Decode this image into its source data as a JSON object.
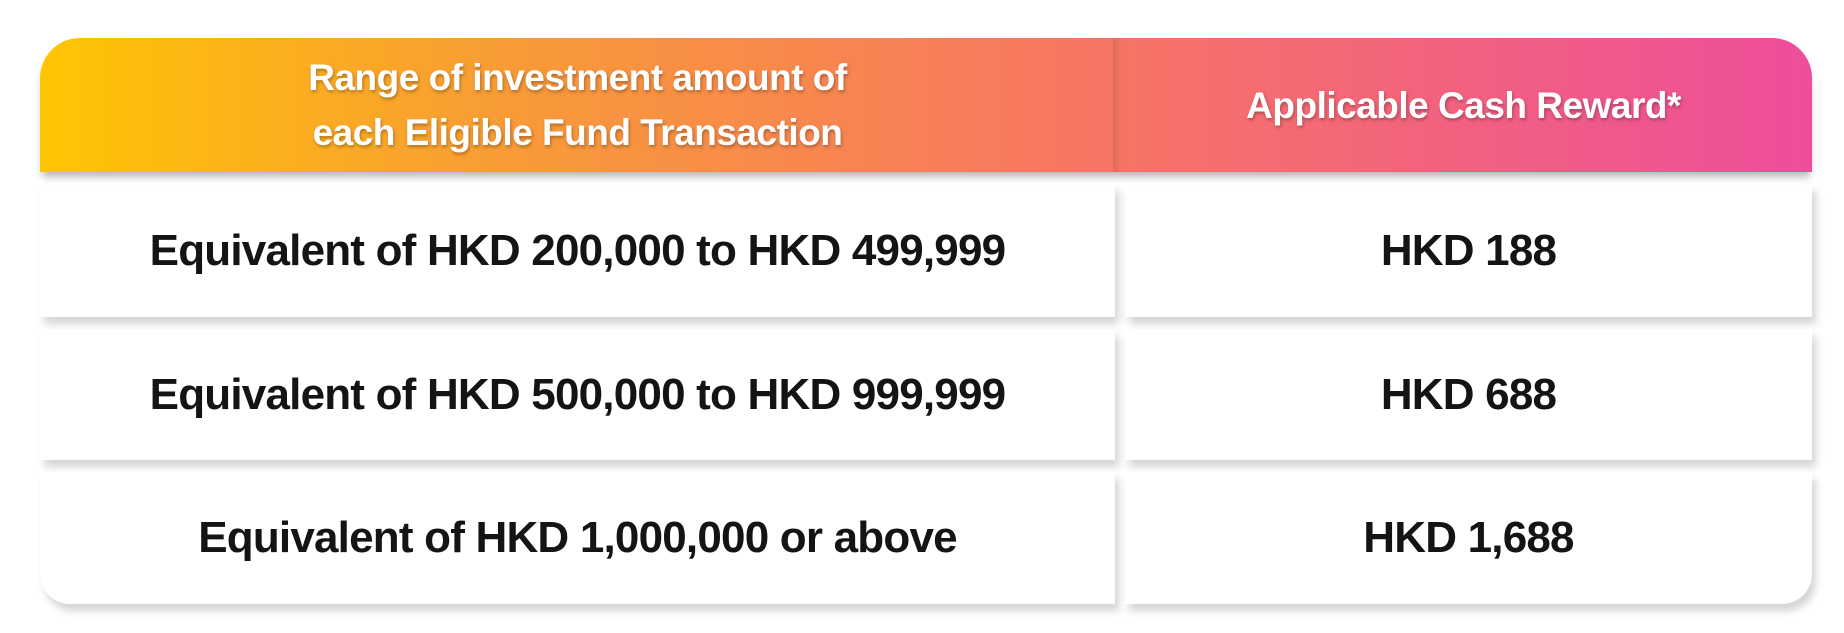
{
  "chart_data": {
    "type": "table",
    "columns": [
      "Range of investment amount of each Eligible Fund Transaction",
      "Applicable Cash Reward*"
    ],
    "rows": [
      [
        "Equivalent of HKD 200,000 to HKD 499,999",
        "HKD 188"
      ],
      [
        "Equivalent of HKD 500,000 to HKD 999,999",
        "HKD 688"
      ],
      [
        "Equivalent of HKD 1,000,000 or above",
        "HKD 1,688"
      ]
    ]
  },
  "header": {
    "col1_line1": "Range of investment amount of",
    "col1_line2": "each Eligible Fund Transaction",
    "col2": "Applicable Cash Reward*"
  },
  "rows": [
    {
      "range": "Equivalent of HKD 200,000 to HKD 499,999",
      "reward": "HKD 188"
    },
    {
      "range": "Equivalent of HKD 500,000 to HKD 999,999",
      "reward": "HKD 688"
    },
    {
      "range": "Equivalent of HKD 1,000,000 or above",
      "reward": "HKD 1,688"
    }
  ],
  "colors": {
    "gradient_yellow": "#FEC503",
    "gradient_orange": "#F89A38",
    "gradient_coral": "#F7795F",
    "gradient_pink": "#EE4D9B",
    "header_text": "#FFFFFF",
    "body_text": "#141414",
    "separator": "#DEDEDE"
  }
}
